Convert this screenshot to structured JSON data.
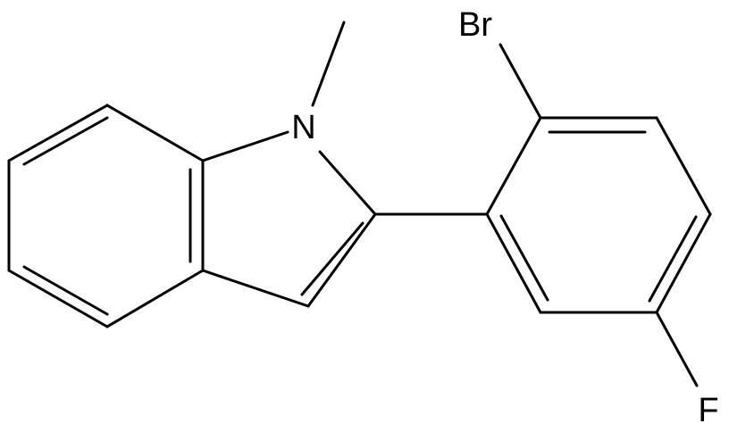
{
  "atoms": [
    {
      "label": "Br"
    },
    {
      "label": "N"
    },
    {
      "label": "F"
    }
  ]
}
